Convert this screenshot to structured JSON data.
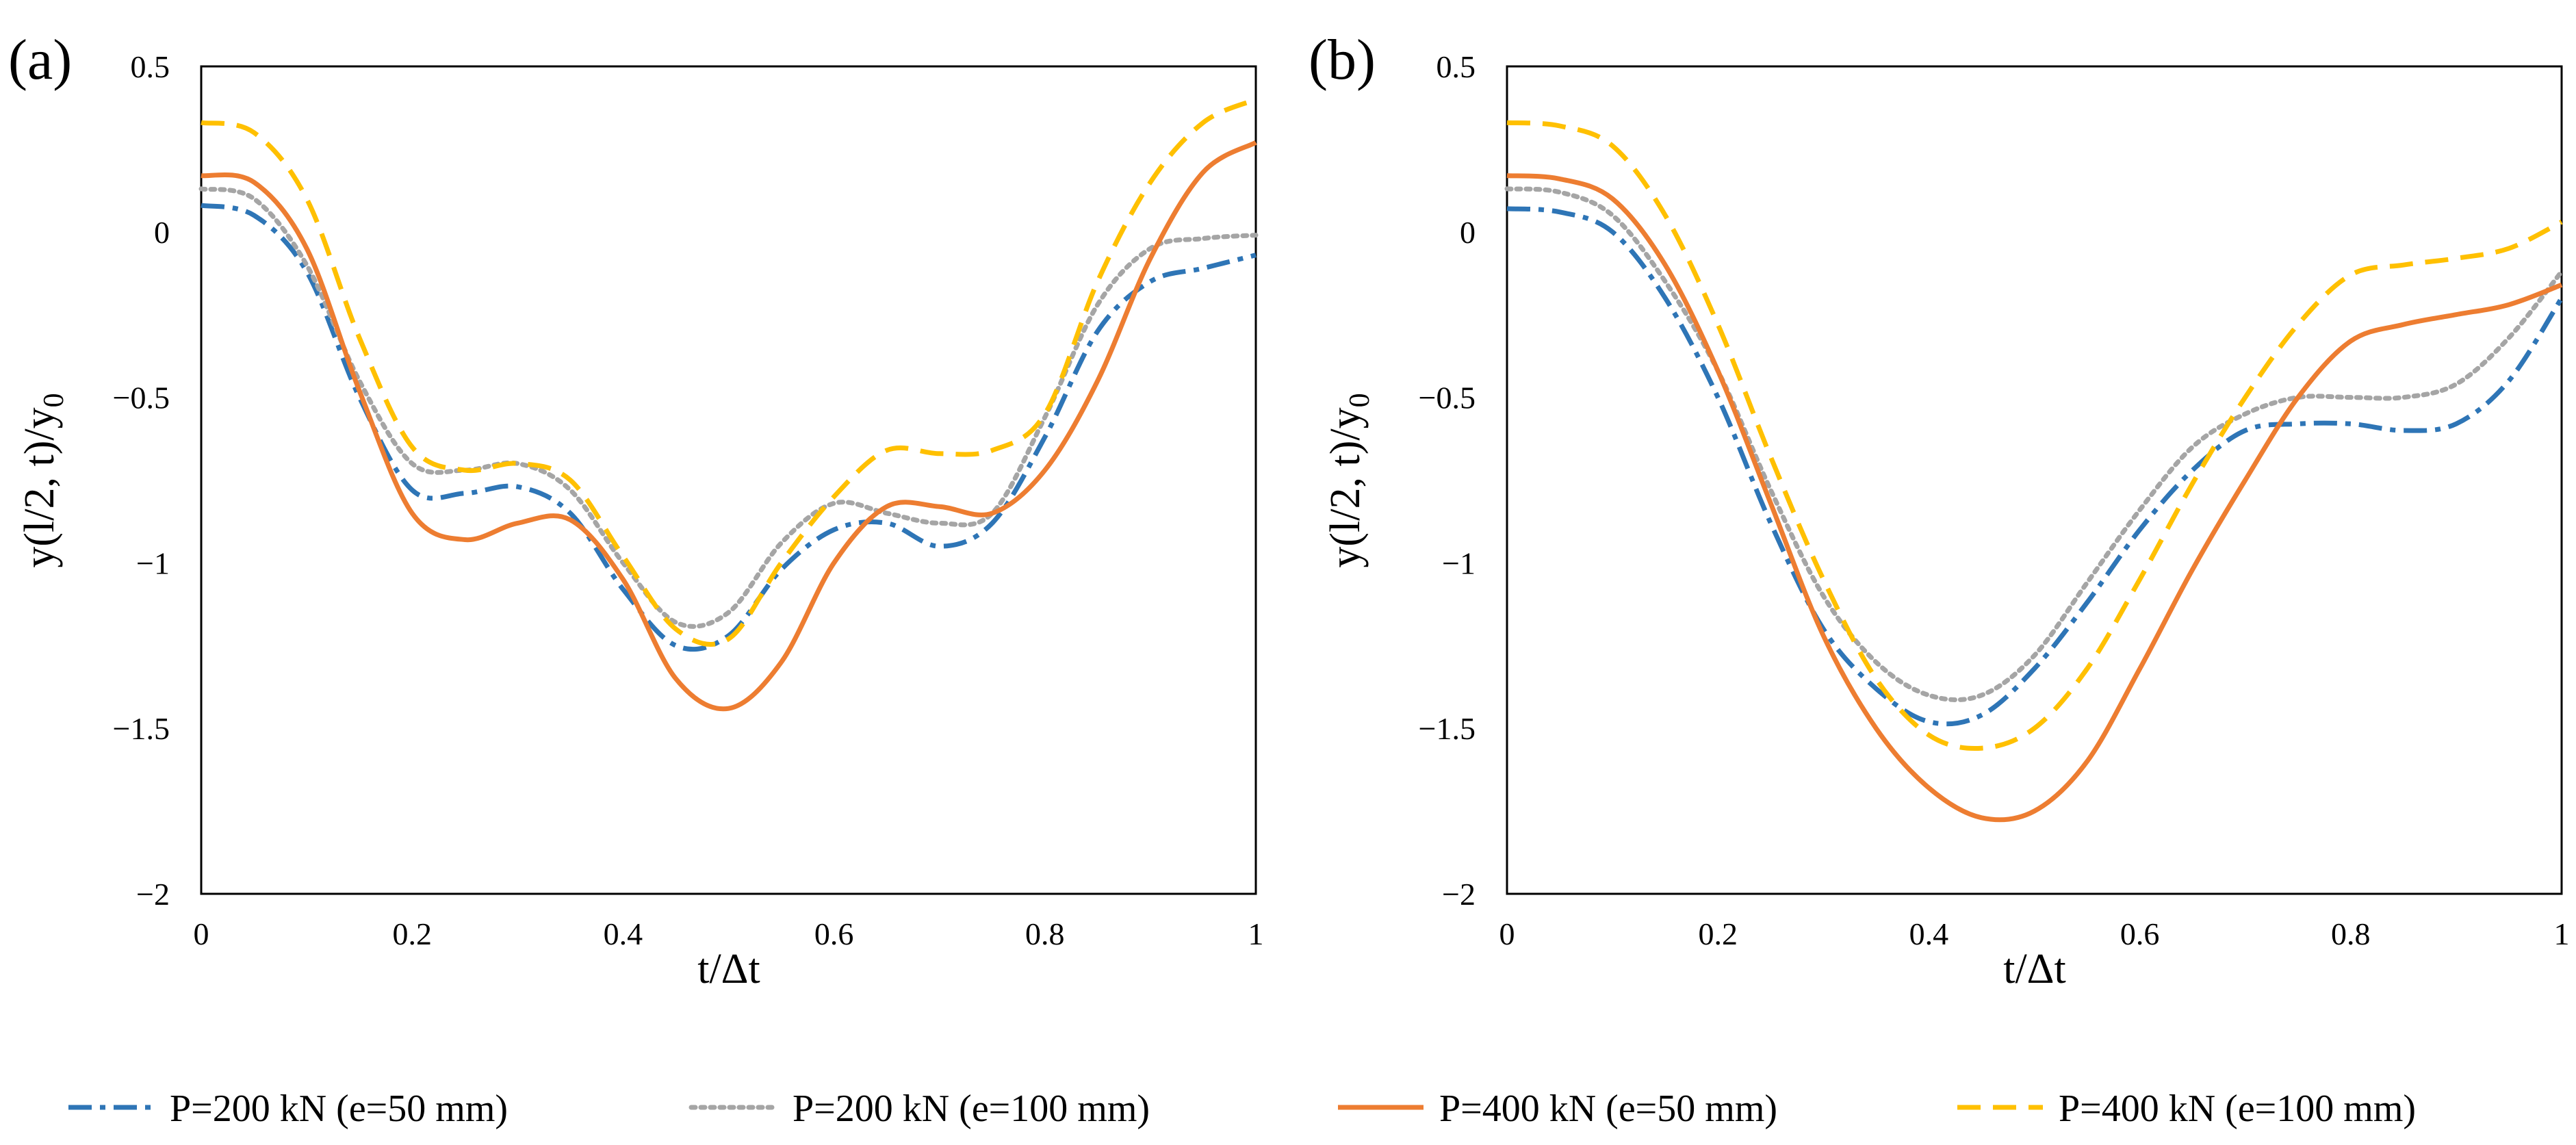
{
  "chart_data": [
    {
      "panel": "(a)",
      "type": "line",
      "xlabel": "t/Δt",
      "ylabel": "y(l/2, t)/y",
      "ylabel_sub": "0",
      "xlim": [
        0,
        1
      ],
      "ylim": [
        -2,
        0.5
      ],
      "xticks": [
        0,
        0.2,
        0.4,
        0.6,
        0.8,
        1
      ],
      "xtick_labels": [
        "0",
        "0.2",
        "0.4",
        "0.6",
        "0.8",
        "1"
      ],
      "yticks": [
        0.5,
        0,
        -0.5,
        -1,
        -1.5,
        -2
      ],
      "ytick_labels": [
        "0.5",
        "0",
        "−0.5",
        "−1",
        "−1.5",
        "−2"
      ],
      "x": [
        0,
        0.05,
        0.1,
        0.15,
        0.2,
        0.25,
        0.3,
        0.35,
        0.4,
        0.45,
        0.5,
        0.55,
        0.6,
        0.65,
        0.7,
        0.75,
        0.8,
        0.85,
        0.9,
        0.95,
        1.0
      ],
      "series": [
        {
          "name": "P=200 kN (e=50 mm)",
          "values": [
            0.08,
            0.05,
            -0.12,
            -0.5,
            -0.78,
            -0.79,
            -0.77,
            -0.85,
            -1.08,
            -1.25,
            -1.22,
            -1.02,
            -0.9,
            -0.88,
            -0.95,
            -0.88,
            -0.62,
            -0.3,
            -0.15,
            -0.11,
            -0.07
          ]
        },
        {
          "name": "P=200 kN (e=100 mm)",
          "values": [
            0.13,
            0.1,
            -0.1,
            -0.45,
            -0.7,
            -0.72,
            -0.7,
            -0.78,
            -1.0,
            -1.18,
            -1.15,
            -0.94,
            -0.82,
            -0.85,
            -0.88,
            -0.85,
            -0.56,
            -0.22,
            -0.05,
            -0.02,
            -0.01
          ]
        },
        {
          "name": "P=400 kN (e=50 mm)",
          "values": [
            0.17,
            0.15,
            -0.05,
            -0.48,
            -0.85,
            -0.93,
            -0.88,
            -0.87,
            -1.05,
            -1.35,
            -1.44,
            -1.3,
            -1.0,
            -0.83,
            -0.83,
            -0.85,
            -0.72,
            -0.45,
            -0.08,
            0.18,
            0.27
          ]
        },
        {
          "name": "P=400 kN (e=100 mm)",
          "values": [
            0.33,
            0.3,
            0.1,
            -0.32,
            -0.65,
            -0.72,
            -0.7,
            -0.75,
            -0.98,
            -1.2,
            -1.23,
            -1.0,
            -0.8,
            -0.66,
            -0.67,
            -0.66,
            -0.55,
            -0.15,
            0.15,
            0.33,
            0.4
          ]
        }
      ]
    },
    {
      "panel": "(b)",
      "type": "line",
      "xlabel": "t/Δt",
      "ylabel": "y(l/2, t)/y",
      "ylabel_sub": "0",
      "xlim": [
        0,
        1
      ],
      "ylim": [
        -2,
        0.5
      ],
      "xticks": [
        0,
        0.2,
        0.4,
        0.6,
        0.8,
        1
      ],
      "xtick_labels": [
        "0",
        "0.2",
        "0.4",
        "0.6",
        "0.8",
        "1"
      ],
      "yticks": [
        0.5,
        0,
        -0.5,
        -1,
        -1.5,
        -2
      ],
      "ytick_labels": [
        "0.5",
        "0",
        "−0.5",
        "−1",
        "−1.5",
        "−2"
      ],
      "x": [
        0,
        0.05,
        0.1,
        0.15,
        0.2,
        0.25,
        0.3,
        0.35,
        0.4,
        0.45,
        0.5,
        0.55,
        0.6,
        0.65,
        0.7,
        0.75,
        0.8,
        0.85,
        0.9,
        0.95,
        1.0
      ],
      "series": [
        {
          "name": "P=200 kN (e=50 mm)",
          "values": [
            0.07,
            0.06,
            0.0,
            -0.2,
            -0.5,
            -0.88,
            -1.2,
            -1.38,
            -1.48,
            -1.46,
            -1.32,
            -1.12,
            -0.9,
            -0.72,
            -0.6,
            -0.58,
            -0.58,
            -0.6,
            -0.58,
            -0.45,
            -0.2
          ]
        },
        {
          "name": "P=200 kN (e=100 mm)",
          "values": [
            0.13,
            0.12,
            0.05,
            -0.15,
            -0.42,
            -0.78,
            -1.1,
            -1.3,
            -1.4,
            -1.4,
            -1.28,
            -1.06,
            -0.84,
            -0.65,
            -0.55,
            -0.5,
            -0.5,
            -0.5,
            -0.46,
            -0.32,
            -0.12
          ]
        },
        {
          "name": "P=400 kN (e=50 mm)",
          "values": [
            0.17,
            0.16,
            0.1,
            -0.1,
            -0.42,
            -0.82,
            -1.22,
            -1.5,
            -1.68,
            -1.77,
            -1.75,
            -1.6,
            -1.32,
            -1.02,
            -0.75,
            -0.5,
            -0.33,
            -0.28,
            -0.25,
            -0.22,
            -0.16
          ]
        },
        {
          "name": "P=400 kN (e=100 mm)",
          "values": [
            0.33,
            0.32,
            0.26,
            0.05,
            -0.28,
            -0.68,
            -1.05,
            -1.35,
            -1.52,
            -1.56,
            -1.5,
            -1.32,
            -1.05,
            -0.76,
            -0.5,
            -0.28,
            -0.13,
            -0.1,
            -0.08,
            -0.05,
            0.03
          ]
        }
      ]
    }
  ],
  "legend": {
    "placement": "bottom",
    "entries": [
      "P=200 kN (e=50 mm)",
      "P=200 kN (e=100 mm)",
      "P=400 kN (e=50 mm)",
      "P=400 kN (e=100 mm)"
    ]
  },
  "colors": [
    "#2e75b6",
    "#a5a5a5",
    "#ed7d31",
    "#ffc000"
  ],
  "dashes": [
    "34,12,8,12",
    "6,8",
    "none",
    "34,18"
  ]
}
